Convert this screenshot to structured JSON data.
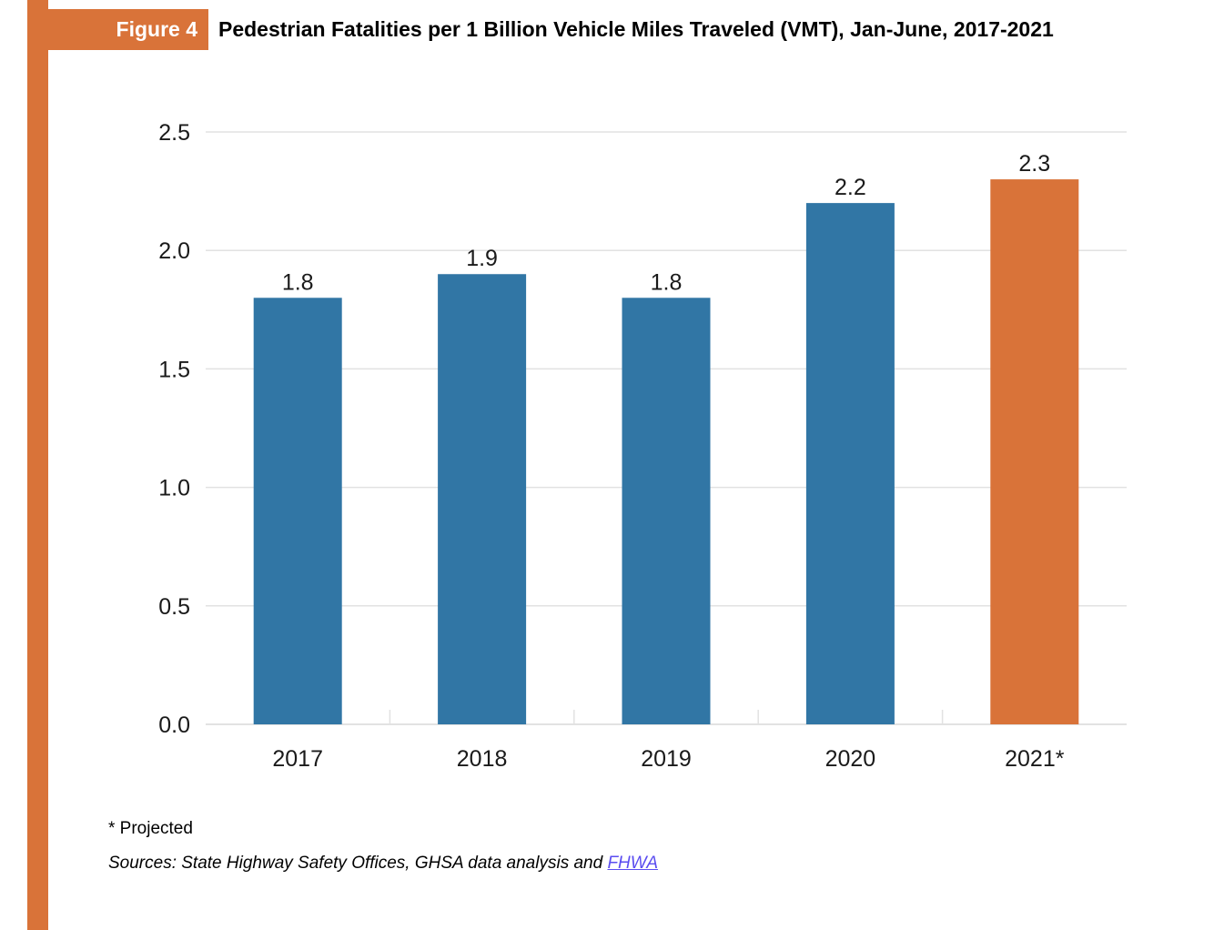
{
  "figure_label": "Figure 4",
  "title": "Pedestrian Fatalities per 1 Billion Vehicle Miles Traveled (VMT), Jan-June, 2017-2021",
  "footnote": "* Projected",
  "sources": {
    "prefix": "Sources: State Highway Safety Offices, GHSA data analysis and ",
    "link_text": "FHWA"
  },
  "colors": {
    "accent": "#d97339",
    "bar": "#3176a5",
    "projected_bar": "#d97339",
    "grid": "#e2e2e2"
  },
  "chart_data": {
    "type": "bar",
    "title": "Pedestrian Fatalities per 1 Billion Vehicle Miles Traveled (VMT), Jan-June, 2017-2021",
    "xlabel": "",
    "ylabel": "",
    "categories": [
      "2017",
      "2018",
      "2019",
      "2020",
      "2021*"
    ],
    "values": [
      1.8,
      1.9,
      1.8,
      2.2,
      2.3
    ],
    "data_labels": [
      "1.8",
      "1.9",
      "1.8",
      "2.2",
      "2.3"
    ],
    "projected": [
      false,
      false,
      false,
      false,
      true
    ],
    "ylim": [
      0,
      2.5
    ],
    "yticks": [
      "0.0",
      "0.5",
      "1.0",
      "1.5",
      "2.0",
      "2.5"
    ],
    "ytick_values": [
      0,
      0.5,
      1.0,
      1.5,
      2.0,
      2.5
    ],
    "grid": true,
    "legend": "none"
  }
}
